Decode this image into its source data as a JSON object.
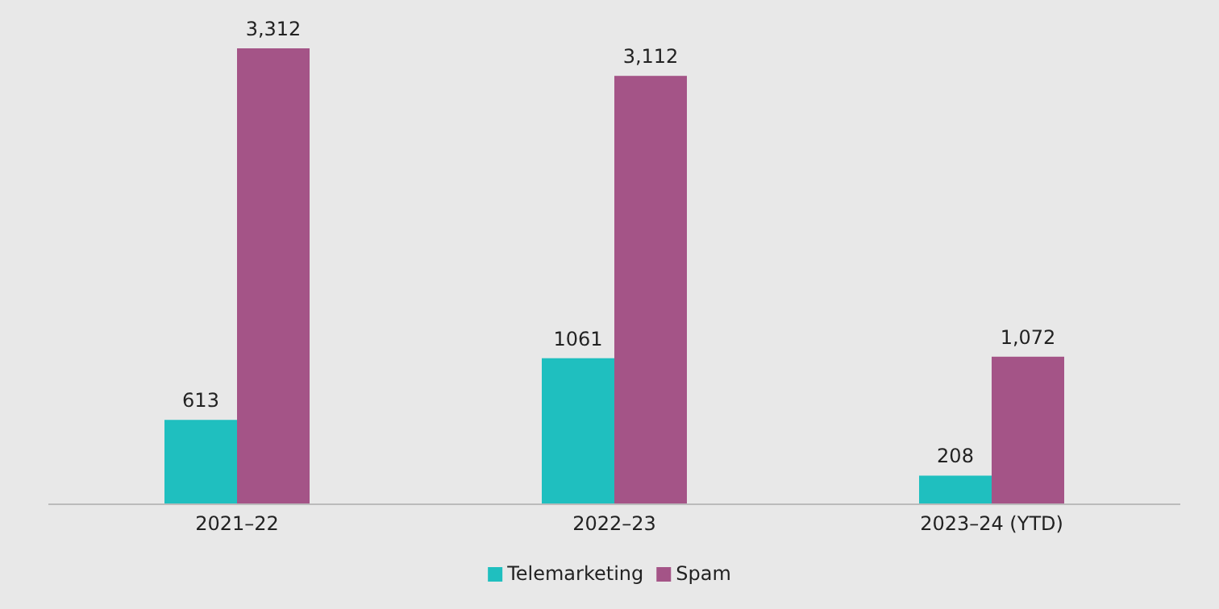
{
  "chart_data": {
    "type": "bar",
    "categories": [
      "2021–22",
      "2022–23",
      "2023–24 (YTD)"
    ],
    "series": [
      {
        "name": "Telemarketing",
        "color": "#1fbfbf",
        "values": [
          613,
          1061,
          208
        ],
        "value_labels": [
          "613",
          "1061",
          "208"
        ]
      },
      {
        "name": "Spam",
        "color": "#a45487",
        "values": [
          3312,
          3112,
          1072
        ],
        "value_labels": [
          "3,312",
          "3,112",
          "1,072"
        ]
      }
    ],
    "legend": "bottom"
  }
}
